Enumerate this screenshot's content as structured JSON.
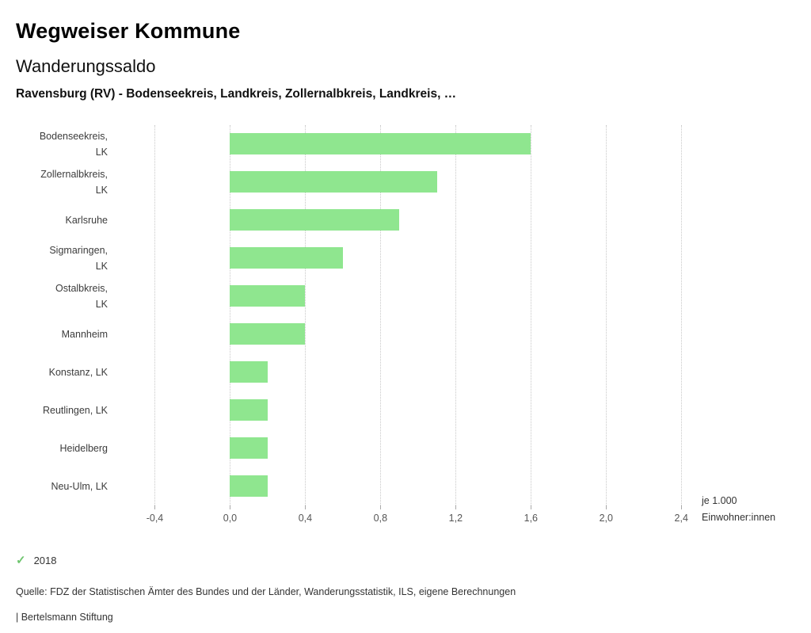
{
  "header": {
    "title": "Wegweiser Kommune",
    "subtitle": "Wanderungssaldo",
    "selection": "Ravensburg (RV) - Bodenseekreis, Landkreis, Zollernalbkreis, Landkreis, …"
  },
  "chart_data": {
    "type": "bar",
    "orientation": "horizontal",
    "title": "Wanderungssaldo",
    "subtitle": "Ravensburg (RV) - Bodenseekreis, Landkreis, Zollernalbkreis, Landkreis, …",
    "categories": [
      "Bodenseekreis, LK",
      "Zollernalbkreis, LK",
      "Karlsruhe",
      "Sigmaringen, LK",
      "Ostalbkreis, LK",
      "Mannheim",
      "Konstanz, LK",
      "Reutlingen, LK",
      "Heidelberg",
      "Neu-Ulm, LK"
    ],
    "category_lines": [
      [
        "Bodenseekreis,",
        "LK"
      ],
      [
        "Zollernalbkreis,",
        "LK"
      ],
      [
        "Karlsruhe"
      ],
      [
        "Sigmaringen,",
        "LK"
      ],
      [
        "Ostalbkreis,",
        "LK"
      ],
      [
        "Mannheim"
      ],
      [
        "Konstanz, LK"
      ],
      [
        "Reutlingen, LK"
      ],
      [
        "Heidelberg"
      ],
      [
        "Neu-Ulm, LK"
      ]
    ],
    "series": [
      {
        "name": "2018",
        "values": [
          1.6,
          1.1,
          0.9,
          0.6,
          0.4,
          0.4,
          0.2,
          0.2,
          0.2,
          0.2
        ]
      }
    ],
    "x_ticks": [
      "-0,4",
      "0,0",
      "0,4",
      "0,8",
      "1,2",
      "1,6",
      "2,0",
      "2,4"
    ],
    "x_tick_values": [
      -0.4,
      0,
      0.4,
      0.8,
      1.2,
      1.6,
      2,
      2.4
    ],
    "xlim": [
      -0.6,
      2.42
    ],
    "grid": true,
    "grid_style": "dotted-vertical",
    "unit_label": [
      "je 1.000",
      "Einwohner:innen"
    ],
    "legend": {
      "position": "bottom-left",
      "marker": "check",
      "label": "2018"
    },
    "bar_color": "#8fe68f",
    "check_color": "#6fc56f"
  },
  "footer": {
    "source": "Quelle: FDZ der Statistischen Ämter des Bundes und der Länder, Wanderungsstatistik, ILS, eigene Berechnungen",
    "brand": "| Bertelsmann Stiftung"
  }
}
